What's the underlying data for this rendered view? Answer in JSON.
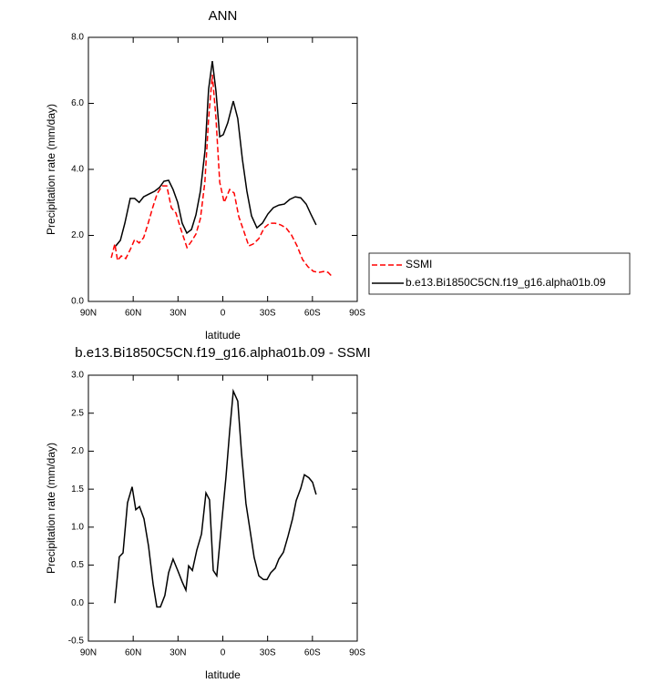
{
  "chart_data": [
    {
      "type": "line",
      "title": "ANN",
      "xlabel": "latitude",
      "ylabel": "Precipitation rate (mm/day)",
      "xlim": [
        90,
        -90
      ],
      "xticks": [
        {
          "value": 90,
          "label": "90N"
        },
        {
          "value": 60,
          "label": "60N"
        },
        {
          "value": 30,
          "label": "30N"
        },
        0,
        {
          "value": -30,
          "label": "30S"
        },
        {
          "value": -60,
          "label": "60S"
        },
        {
          "value": -90,
          "label": "90S"
        }
      ],
      "ylim": [
        0,
        8
      ],
      "yticks": [
        {
          "value": 0,
          "label": "0.0"
        },
        {
          "value": 2,
          "label": "2.0"
        },
        {
          "value": 4,
          "label": "4.0"
        },
        {
          "value": 6,
          "label": "6.0"
        },
        {
          "value": 8,
          "label": "8.0"
        }
      ],
      "legend": "right",
      "series": [
        {
          "name": "SSMI",
          "color": "#ff0000",
          "dashed": true,
          "x": [
            74.7,
            72.3,
            70.5,
            68,
            65,
            62,
            59,
            56,
            53,
            50,
            47,
            44,
            40.6,
            37.5,
            34.5,
            31.4,
            28.4,
            24,
            21,
            18,
            15,
            12,
            9.5,
            7,
            4.6,
            2.1,
            -0.9,
            -4.6,
            -7.6,
            -10.7,
            -14.3,
            -17.4,
            -20.4,
            -24.1,
            -27.7,
            -31.4,
            -35,
            -38.7,
            -42.3,
            -46,
            -49.7,
            -53.4,
            -57,
            -60.7,
            -64.4,
            -68,
            -70.5,
            -73.5
          ],
          "values": [
            1.32,
            1.74,
            1.24,
            1.38,
            1.3,
            1.57,
            1.88,
            1.77,
            1.93,
            2.37,
            2.84,
            3.26,
            3.5,
            3.5,
            2.84,
            2.68,
            2.23,
            1.63,
            1.82,
            2.04,
            2.51,
            3.61,
            5.54,
            6.87,
            5.54,
            3.61,
            3.0,
            3.39,
            3.28,
            2.57,
            2.1,
            1.68,
            1.74,
            1.9,
            2.23,
            2.37,
            2.37,
            2.32,
            2.23,
            2.01,
            1.68,
            1.27,
            1.05,
            0.91,
            0.88,
            0.91,
            0.88,
            0.74
          ]
        },
        {
          "name": "b.e13.Bi1850C5CN.f19_g16.alpha01b.09",
          "color": "#000000",
          "dashed": false,
          "x": [
            71.7,
            68.6,
            65.6,
            62,
            59,
            56,
            53,
            49.1,
            45.5,
            42.4,
            39.4,
            36.3,
            33.3,
            30.2,
            27.2,
            24.1,
            21,
            18,
            15,
            11.9,
            9.5,
            7,
            4.6,
            2.1,
            -0.3,
            -3.3,
            -7,
            -10,
            -13.1,
            -16.1,
            -19.2,
            -22.8,
            -26.5,
            -30.2,
            -33.8,
            -37.5,
            -41.2,
            -44.8,
            -48.5,
            -52.2,
            -55.8,
            -58.9,
            -62.5
          ],
          "values": [
            1.68,
            1.85,
            2.37,
            3.12,
            3.12,
            3.0,
            3.17,
            3.26,
            3.34,
            3.45,
            3.64,
            3.67,
            3.39,
            3.0,
            2.37,
            2.07,
            2.18,
            2.62,
            3.34,
            4.58,
            6.43,
            7.28,
            6.37,
            4.99,
            5.05,
            5.41,
            6.07,
            5.54,
            4.3,
            3.34,
            2.59,
            2.23,
            2.37,
            2.65,
            2.84,
            2.92,
            2.95,
            3.09,
            3.17,
            3.14,
            2.95,
            2.65,
            2.32
          ]
        }
      ]
    },
    {
      "type": "line",
      "title": "b.e13.Bi1850C5CN.f19_g16.alpha01b.09 - SSMI",
      "xlabel": "latitude",
      "ylabel": "Precipitation rate (mm/day)",
      "xlim": [
        90,
        -90
      ],
      "xticks": [
        {
          "value": 90,
          "label": "90N"
        },
        {
          "value": 60,
          "label": "60N"
        },
        {
          "value": 30,
          "label": "30N"
        },
        0,
        {
          "value": -30,
          "label": "30S"
        },
        {
          "value": -60,
          "label": "60S"
        },
        {
          "value": -90,
          "label": "90S"
        }
      ],
      "ylim": [
        -0.5,
        3
      ],
      "yticks": [
        -0.5,
        {
          "value": 0,
          "label": "0.0"
        },
        0.5,
        {
          "value": 1,
          "label": "1.0"
        },
        1.5,
        {
          "value": 2,
          "label": "2.0"
        },
        2.5,
        {
          "value": 3,
          "label": "3.0"
        }
      ],
      "series": [
        {
          "color": "#000000",
          "dashed": false,
          "x": [
            72.3,
            69.3,
            66.8,
            63.8,
            60.7,
            58.3,
            55.8,
            52.8,
            49.7,
            46.7,
            44.2,
            41.8,
            38.8,
            36.3,
            33.3,
            30.2,
            27.2,
            24.7,
            22.9,
            20.4,
            17.4,
            14.3,
            11.3,
            8.9,
            6.4,
            4,
            0.9,
            -2.1,
            -4.6,
            -7,
            -10,
            -12.5,
            -15.5,
            -18,
            -21,
            -24.1,
            -27.2,
            -29.6,
            -32.1,
            -35.1,
            -37.5,
            -40.6,
            -43.6,
            -46.7,
            -49.1,
            -52.2,
            -54.6,
            -57.6,
            -60.1,
            -62.5
          ],
          "values": [
            0.0,
            0.61,
            0.66,
            1.32,
            1.53,
            1.23,
            1.27,
            1.11,
            0.75,
            0.25,
            -0.05,
            -0.05,
            0.1,
            0.4,
            0.58,
            0.43,
            0.28,
            0.17,
            0.49,
            0.43,
            0.7,
            0.91,
            1.45,
            1.36,
            0.43,
            0.36,
            1.03,
            1.65,
            2.26,
            2.79,
            2.66,
            1.98,
            1.31,
            0.99,
            0.6,
            0.36,
            0.31,
            0.31,
            0.4,
            0.46,
            0.58,
            0.67,
            0.88,
            1.11,
            1.35,
            1.51,
            1.69,
            1.65,
            1.59,
            1.43
          ]
        }
      ]
    }
  ]
}
